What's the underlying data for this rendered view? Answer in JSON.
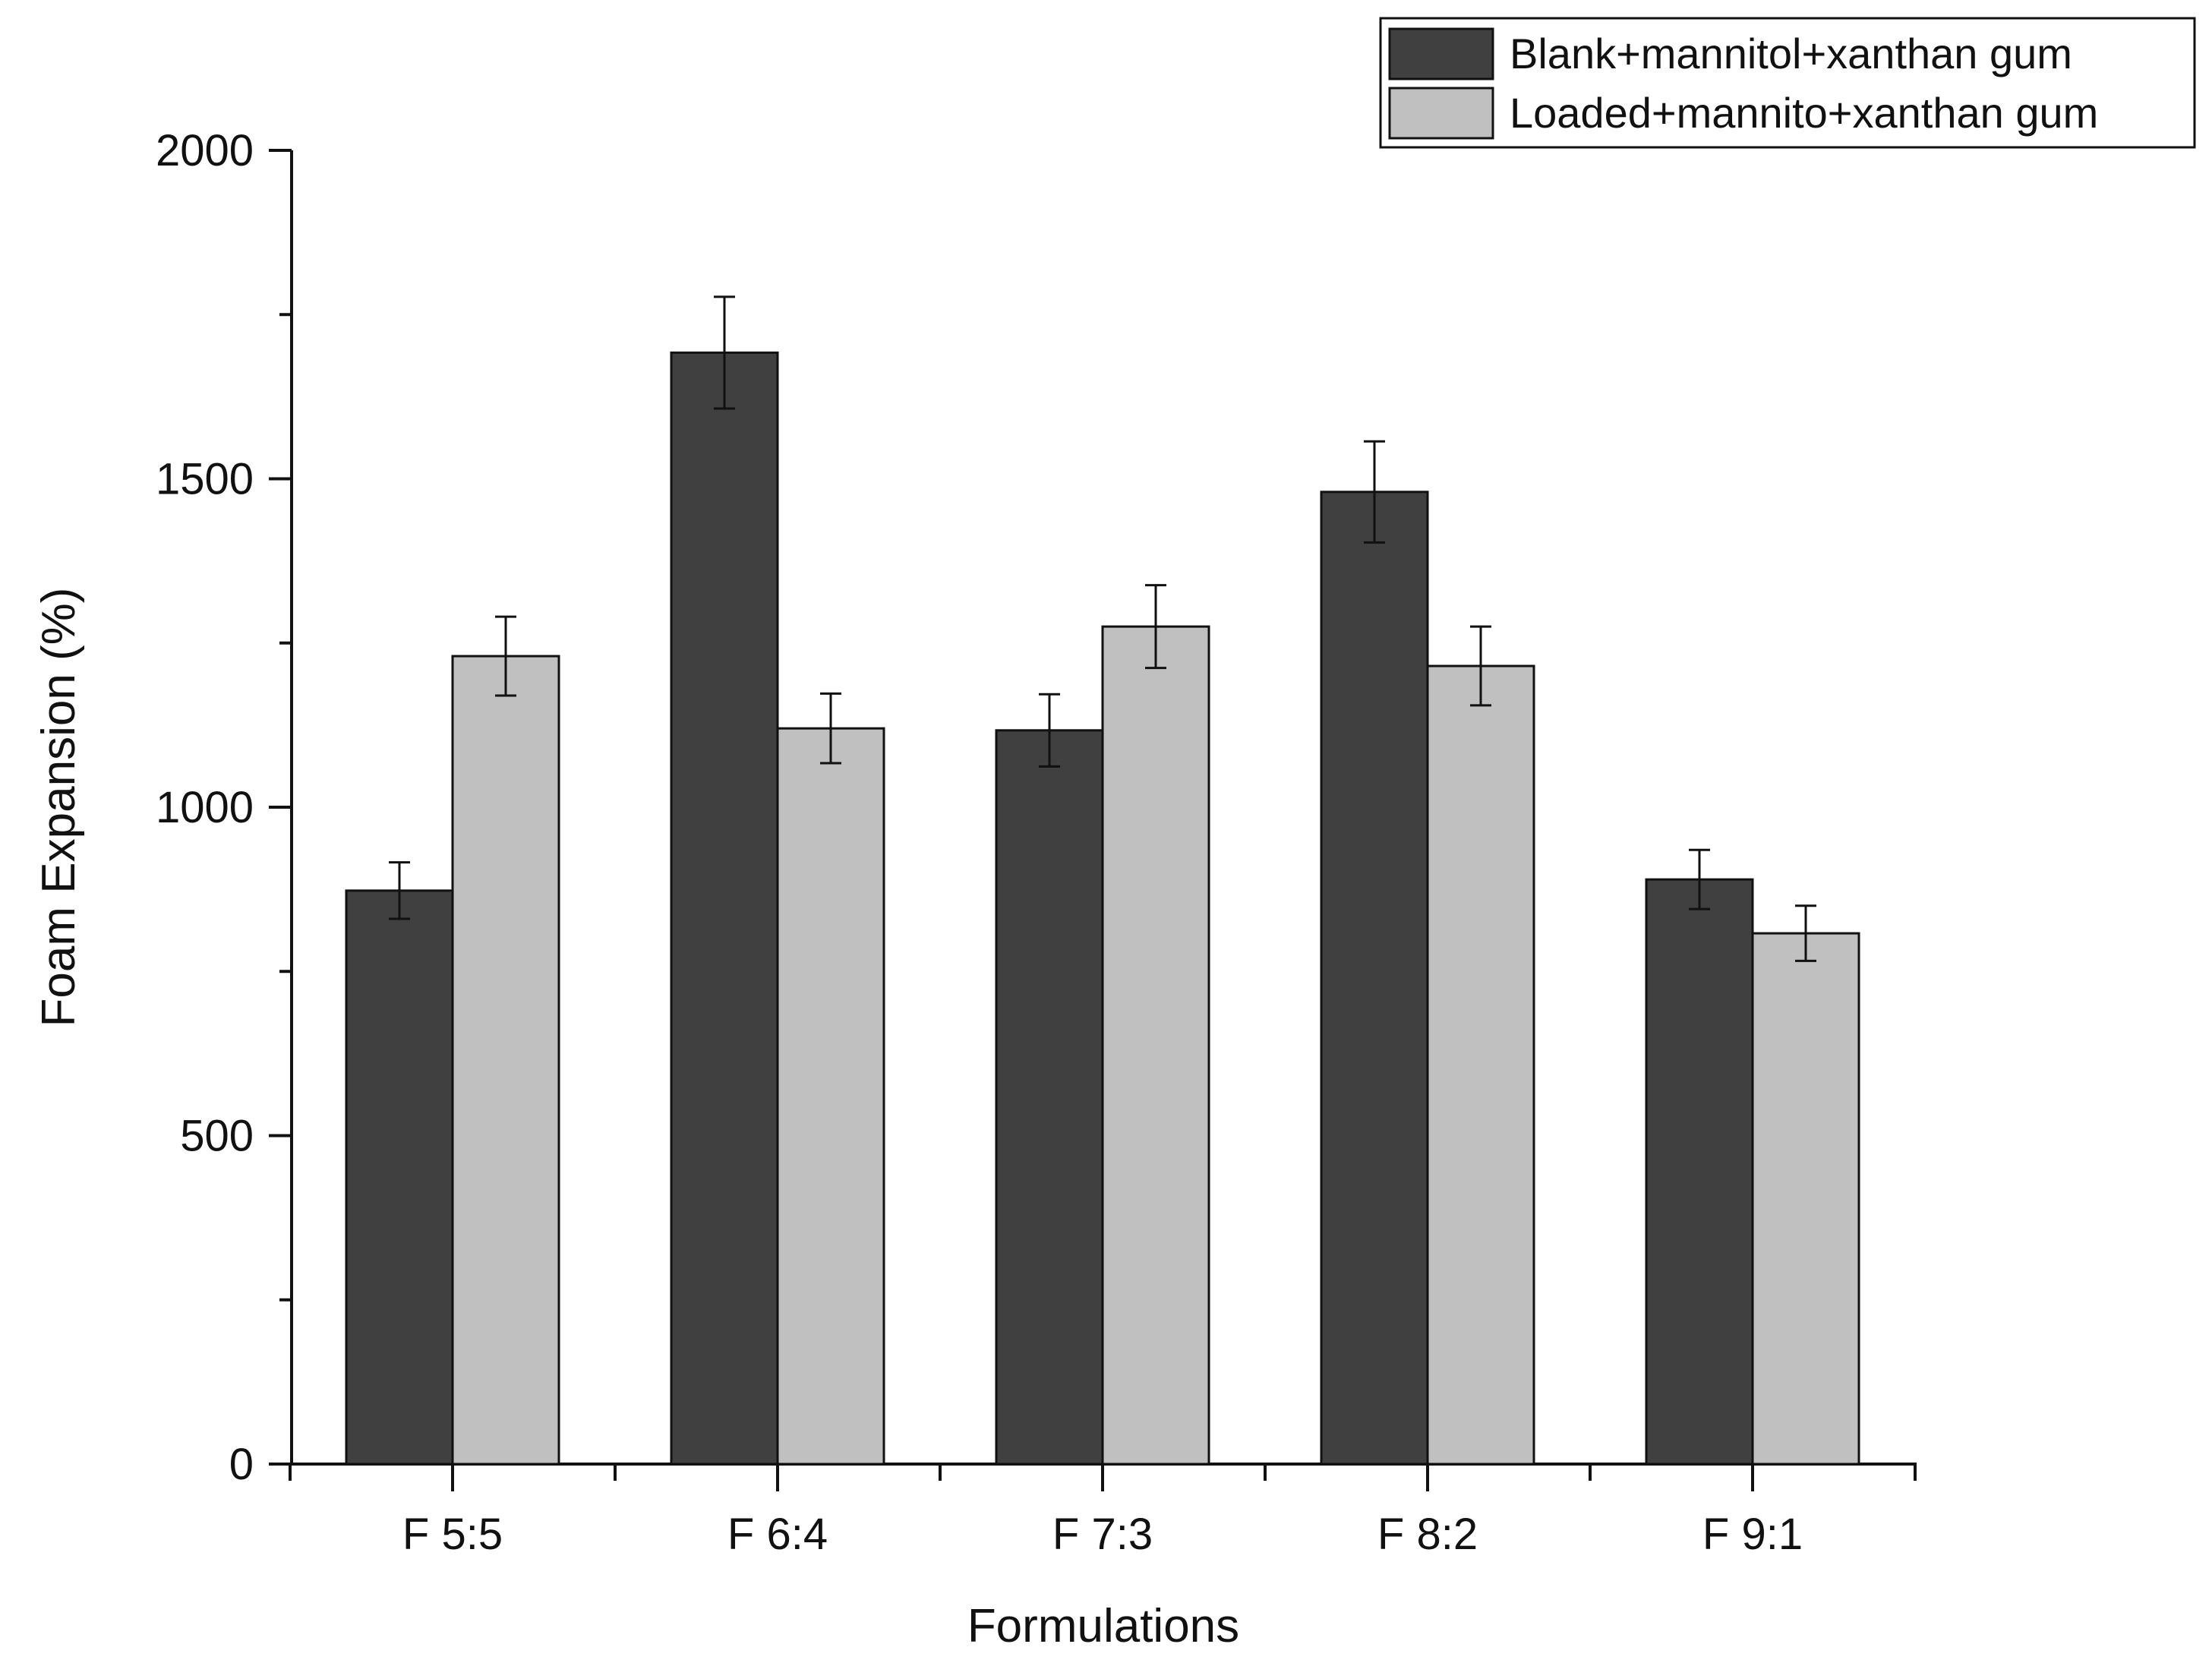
{
  "chart_data": {
    "type": "bar",
    "title": "",
    "xlabel": "Formulations",
    "ylabel": "Foam Expansion (%)",
    "ylim": [
      0,
      2000
    ],
    "yticks": [
      0,
      500,
      1000,
      1500,
      2000
    ],
    "categories": [
      "F 5:5",
      "F 6:4",
      "F 7:3",
      "F 8:2",
      "F 9:1"
    ],
    "series": [
      {
        "name": "Blank+mannitol+xanthan gum",
        "color": "#404040",
        "values": [
          873,
          1692,
          1117,
          1480,
          890
        ],
        "errors": [
          43,
          85,
          55,
          77,
          45
        ]
      },
      {
        "name": "Loaded+mannito+xanthan gum",
        "color": "#c0c0c0",
        "values": [
          1230,
          1120,
          1275,
          1215,
          808
        ],
        "errors": [
          60,
          53,
          63,
          60,
          42
        ]
      }
    ],
    "legend_position": "top-right",
    "grid": false
  }
}
